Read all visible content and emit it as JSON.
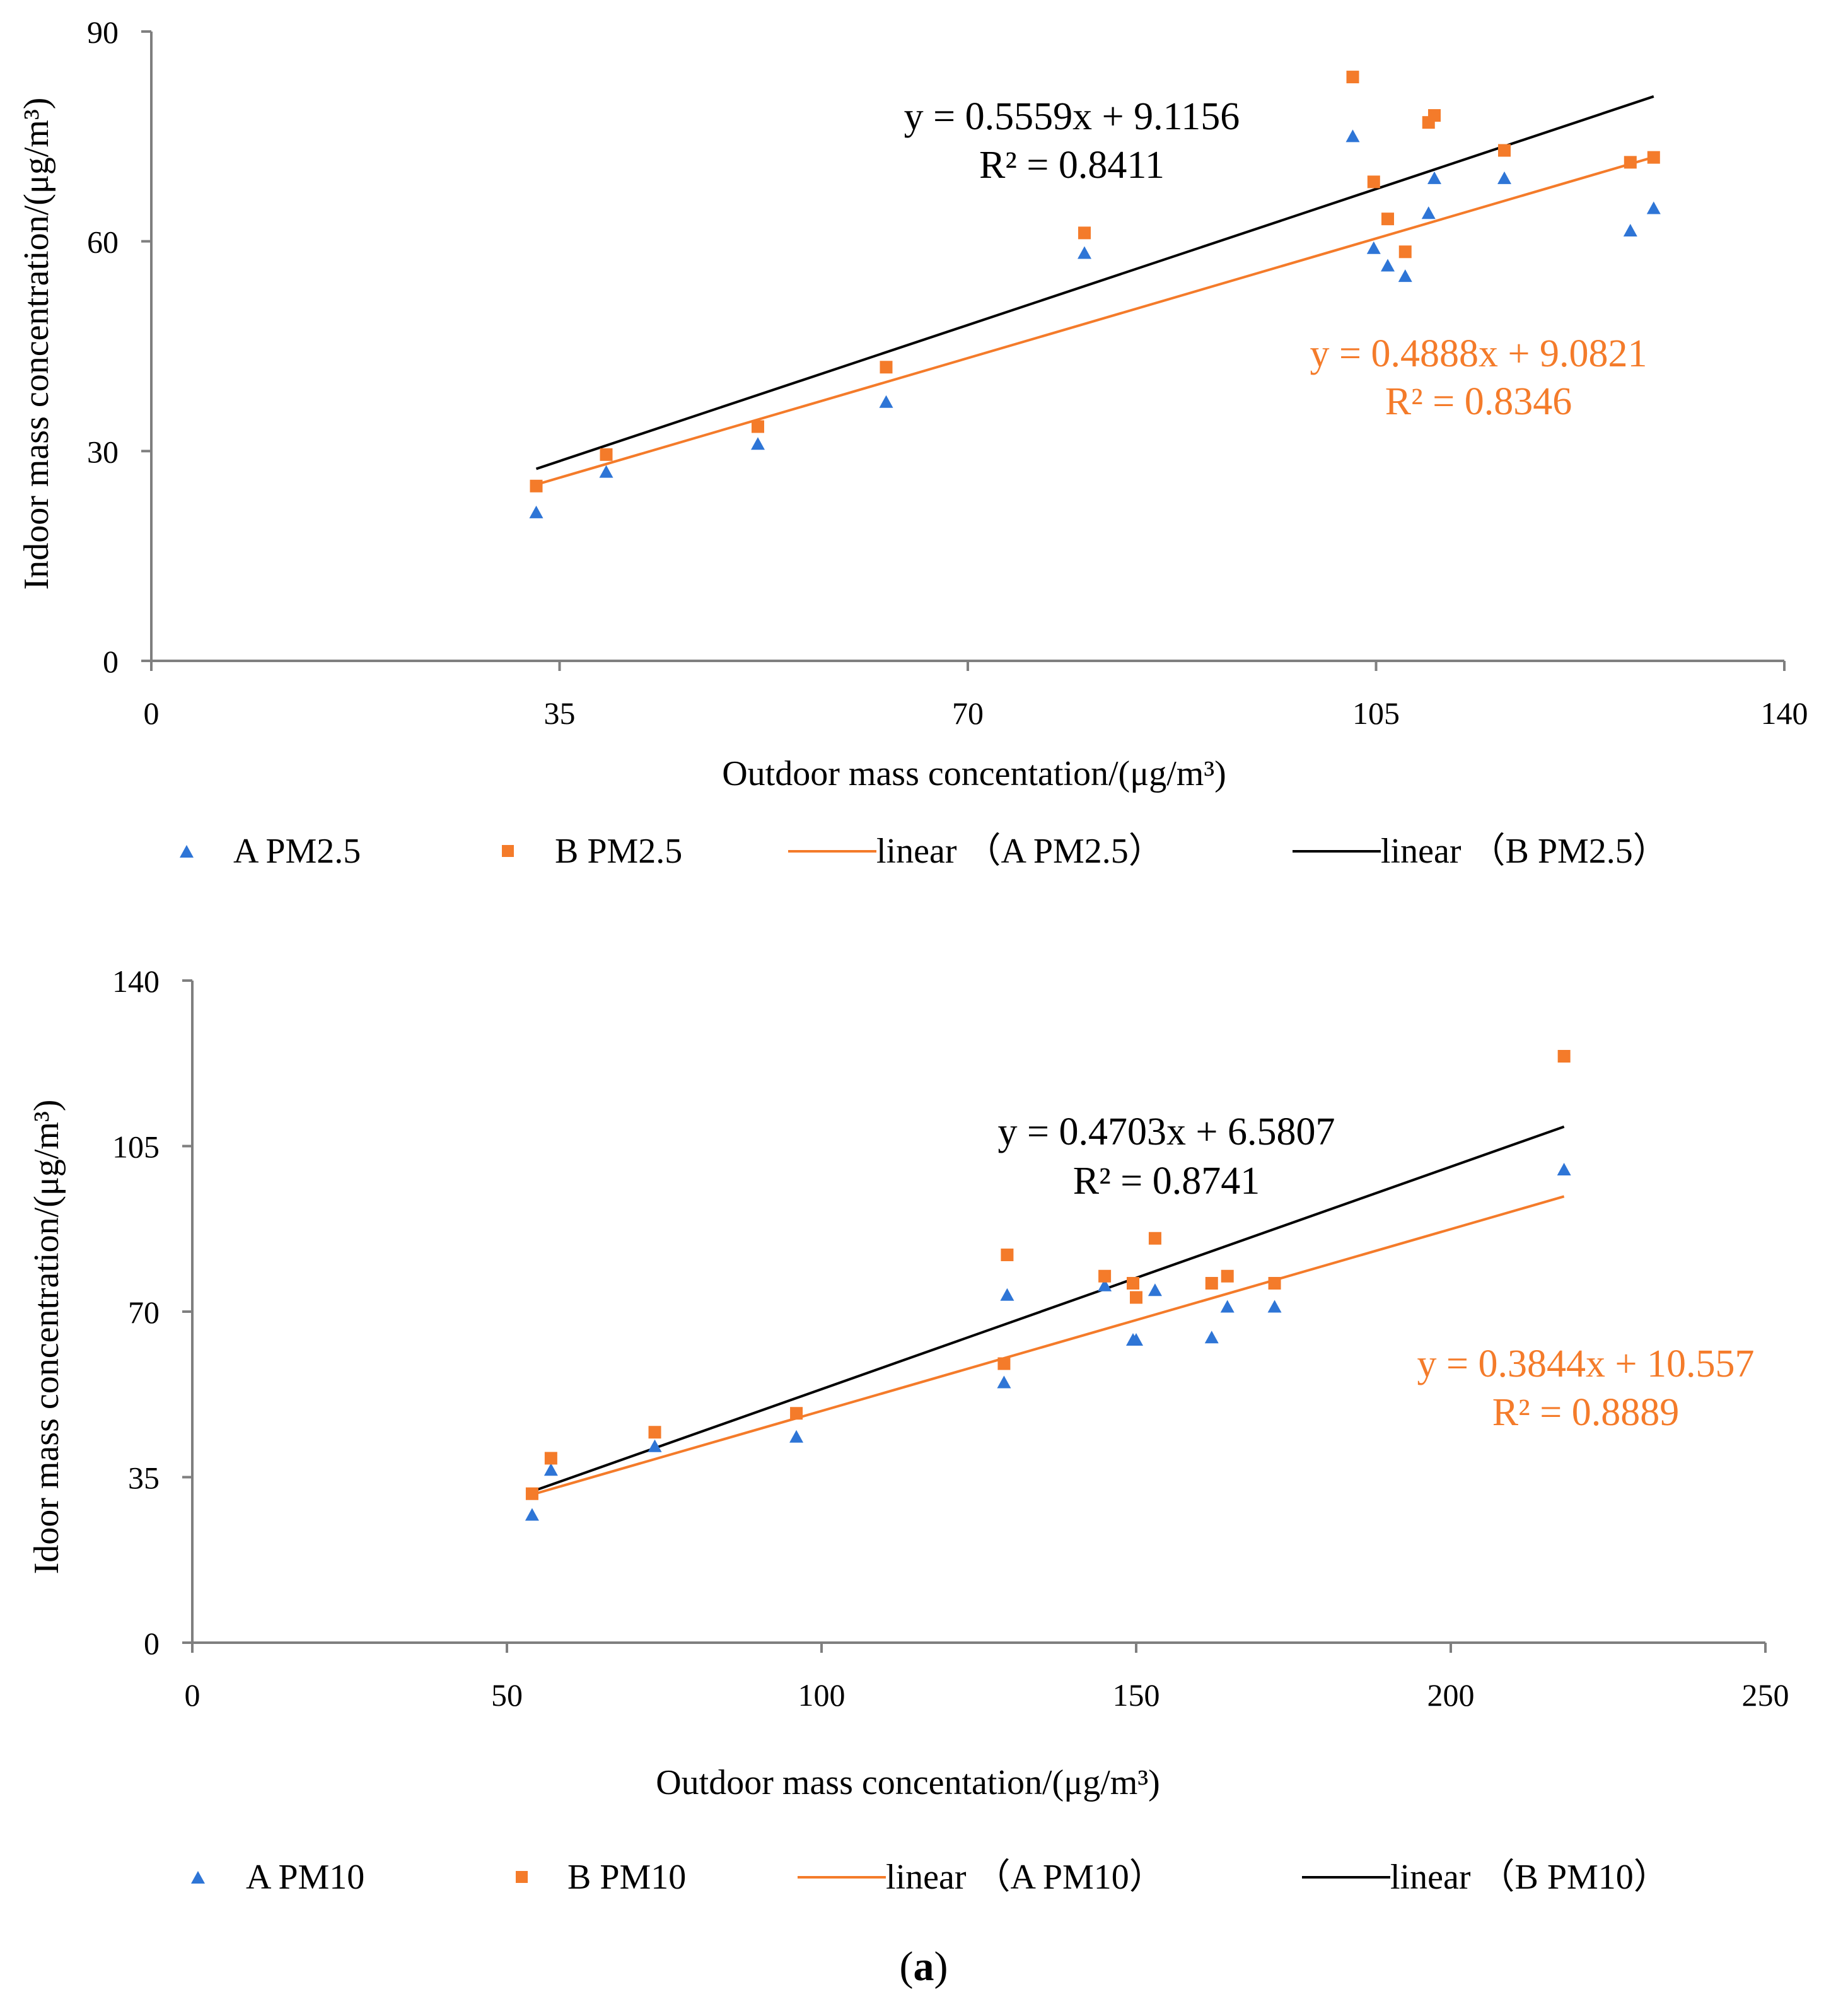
{
  "figure_caption": {
    "open": "(",
    "letter": "a",
    "close": ")"
  },
  "colors": {
    "series_a": "#2e75d6",
    "series_b": "#f47b2a",
    "fit_a": "#f47b2a",
    "fit_b": "#000000",
    "axis": "#7f7f7f"
  },
  "chart_data": [
    {
      "type": "scatter",
      "id": "pm25",
      "xlabel": "Outdoor mass concentation/(μg/m³)",
      "ylabel": "Indoor mass concentration/(μg/m³)",
      "xlim": [
        0,
        140
      ],
      "ylim": [
        0,
        90
      ],
      "xticks": [
        0,
        35,
        70,
        105,
        140
      ],
      "yticks": [
        0,
        30,
        60,
        90
      ],
      "series": [
        {
          "name": "A  PM2.5",
          "marker": "triangle",
          "x": [
            33.0,
            39.0,
            52.0,
            63.0,
            80.0,
            103.0,
            104.8,
            106.0,
            107.5,
            109.5,
            110.0,
            116.0,
            126.8,
            128.8
          ],
          "y": [
            21.2,
            27.0,
            31.0,
            37.0,
            58.3,
            75.0,
            59.0,
            56.5,
            55.0,
            64.0,
            69.0,
            69.0,
            61.5,
            64.7
          ]
        },
        {
          "name": "B  PM2.5",
          "marker": "square",
          "x": [
            33.0,
            39.0,
            52.0,
            63.0,
            80.0,
            103.0,
            104.8,
            106.0,
            107.5,
            109.5,
            110.0,
            116.0,
            126.8,
            128.8
          ],
          "y": [
            25.0,
            29.5,
            33.5,
            42.0,
            61.2,
            83.5,
            68.5,
            63.2,
            58.5,
            77.0,
            78.0,
            73.0,
            71.3,
            72.0
          ]
        }
      ],
      "fits": [
        {
          "name": "linear （A PM2.5）",
          "slope": 0.4888,
          "intercept": 9.0821,
          "x_range": [
            33,
            128.8
          ],
          "equation": "y = 0.4888x + 9.0821",
          "r2": "R² = 0.8346"
        },
        {
          "name": "linear （B PM2.5）",
          "slope": 0.5559,
          "intercept": 9.1156,
          "x_range": [
            33,
            128.8
          ],
          "equation": "y = 0.5559x + 9.1156",
          "r2": "R² = 0.8411"
        }
      ],
      "legend": [
        "A  PM2.5",
        "B  PM2.5",
        "linear （A PM2.5）",
        "linear （B PM2.5）"
      ]
    },
    {
      "type": "scatter",
      "id": "pm10",
      "xlabel": "Outdoor mass concentation/(μg/m³)",
      "ylabel": "Idoor mass concentration/(μg/m³)",
      "xlim": [
        0,
        250
      ],
      "ylim": [
        0,
        140
      ],
      "xticks": [
        0,
        50,
        100,
        150,
        200,
        250
      ],
      "yticks": [
        0,
        35,
        70,
        105,
        140
      ],
      "series": [
        {
          "name": "A   PM10",
          "marker": "triangle",
          "x": [
            54.0,
            57.0,
            73.5,
            96.0,
            129.0,
            129.5,
            145.0,
            149.5,
            150.0,
            153.0,
            162.0,
            164.5,
            172.0,
            218.0
          ],
          "y": [
            27.0,
            36.5,
            41.5,
            43.5,
            55.0,
            73.5,
            75.5,
            64.0,
            64.0,
            74.5,
            64.5,
            71.0,
            71.0,
            100.0
          ]
        },
        {
          "name": "B   PM10",
          "marker": "square",
          "x": [
            54.0,
            57.0,
            73.5,
            96.0,
            129.0,
            129.5,
            145.0,
            149.5,
            150.0,
            153.0,
            162.0,
            164.5,
            172.0,
            218.0
          ],
          "y": [
            31.5,
            39.0,
            44.5,
            48.5,
            59.0,
            82.0,
            77.5,
            76.0,
            73.0,
            85.5,
            76.0,
            77.5,
            76.0,
            124.0
          ]
        }
      ],
      "fits": [
        {
          "name": "linear （A PM10）",
          "slope": 0.3844,
          "intercept": 10.557,
          "x_range": [
            54,
            218
          ],
          "equation": "y = 0.3844x + 10.557",
          "r2": "R² = 0.8889"
        },
        {
          "name": "linear （B PM10）",
          "slope": 0.4703,
          "intercept": 6.5807,
          "x_range": [
            54,
            218
          ],
          "equation": "y = 0.4703x + 6.5807",
          "r2": "R² = 0.8741"
        }
      ],
      "legend": [
        "A   PM10",
        "B   PM10",
        "linear （A PM10）",
        "linear （B PM10）"
      ]
    }
  ]
}
